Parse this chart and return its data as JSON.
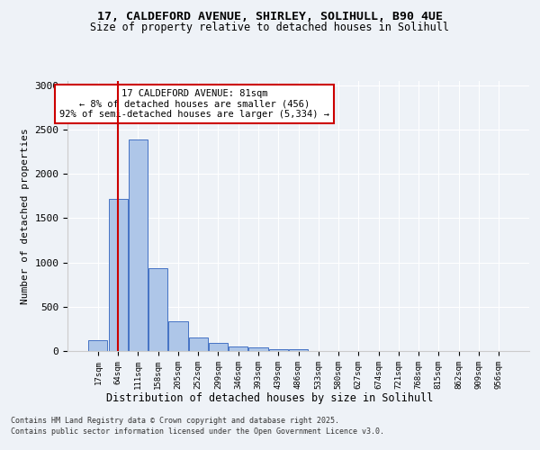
{
  "title_line1": "17, CALDEFORD AVENUE, SHIRLEY, SOLIHULL, B90 4UE",
  "title_line2": "Size of property relative to detached houses in Solihull",
  "xlabel": "Distribution of detached houses by size in Solihull",
  "ylabel": "Number of detached properties",
  "categories": [
    "17sqm",
    "64sqm",
    "111sqm",
    "158sqm",
    "205sqm",
    "252sqm",
    "299sqm",
    "346sqm",
    "393sqm",
    "439sqm",
    "486sqm",
    "533sqm",
    "580sqm",
    "627sqm",
    "674sqm",
    "721sqm",
    "768sqm",
    "815sqm",
    "862sqm",
    "909sqm",
    "956sqm"
  ],
  "values": [
    120,
    1720,
    2390,
    940,
    340,
    150,
    90,
    55,
    40,
    25,
    20,
    0,
    0,
    0,
    0,
    0,
    0,
    0,
    0,
    0,
    0
  ],
  "bar_color": "#aec6e8",
  "bar_edge_color": "#4472c4",
  "vline_x": 1,
  "vline_color": "#cc0000",
  "annotation_title": "17 CALDEFORD AVENUE: 81sqm",
  "annotation_line2": "← 8% of detached houses are smaller (456)",
  "annotation_line3": "92% of semi-detached houses are larger (5,334) →",
  "annotation_box_color": "#ffffff",
  "annotation_box_edge": "#cc0000",
  "ylim": [
    0,
    3050
  ],
  "yticks": [
    0,
    500,
    1000,
    1500,
    2000,
    2500,
    3000
  ],
  "footer_line1": "Contains HM Land Registry data © Crown copyright and database right 2025.",
  "footer_line2": "Contains public sector information licensed under the Open Government Licence v3.0.",
  "bg_color": "#eef2f7",
  "plot_bg_color": "#eef2f7"
}
